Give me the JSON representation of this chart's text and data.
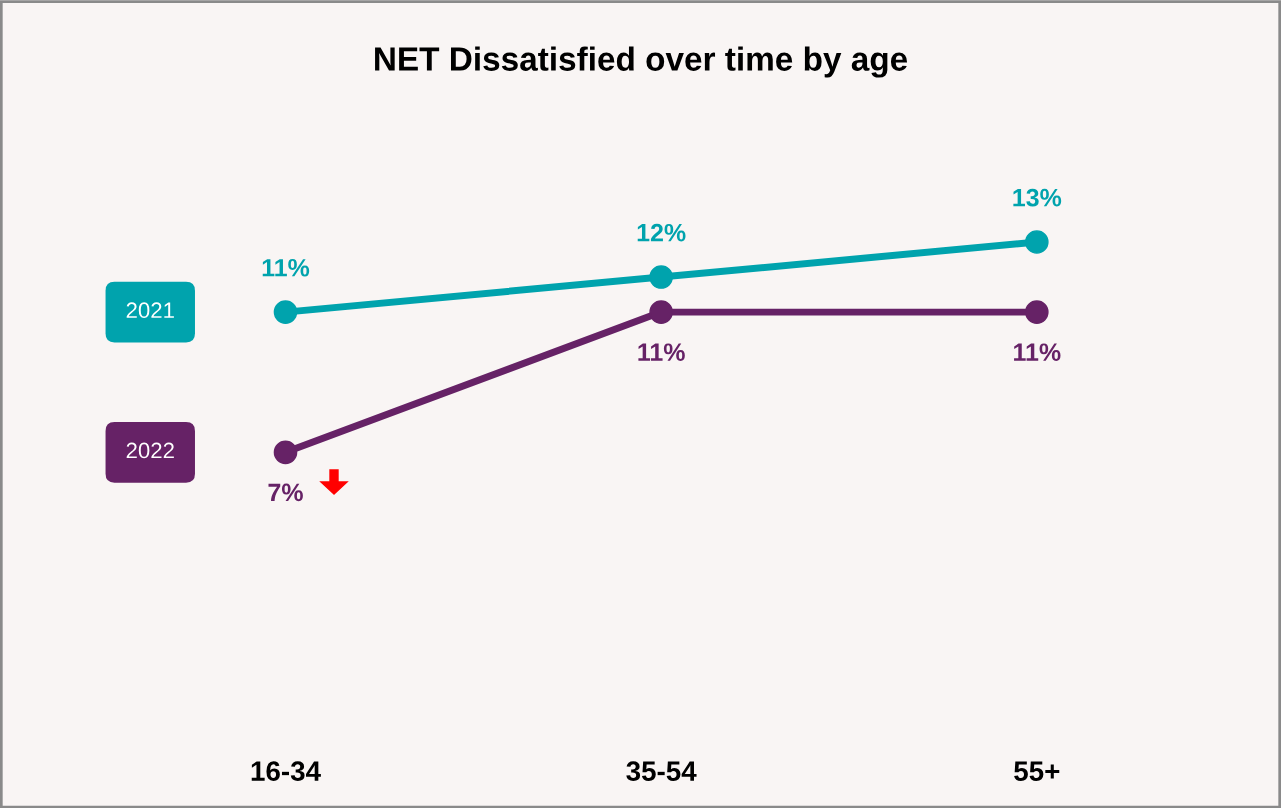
{
  "chart_data": {
    "type": "line",
    "title": "NET Dissatisfied over time by age",
    "categories": [
      "16-34",
      "35-54",
      "55+"
    ],
    "series": [
      {
        "name": "2021",
        "color": "#00a3ad",
        "values": [
          11,
          12,
          13
        ],
        "value_labels": [
          "11%",
          "12%",
          "13%"
        ]
      },
      {
        "name": "2022",
        "color": "#662266",
        "values": [
          7,
          11,
          11
        ],
        "value_labels": [
          "7%",
          "11%",
          "11%"
        ]
      }
    ],
    "marker": "circle",
    "line_style": "solid",
    "legend": "left",
    "grid": false
  }
}
